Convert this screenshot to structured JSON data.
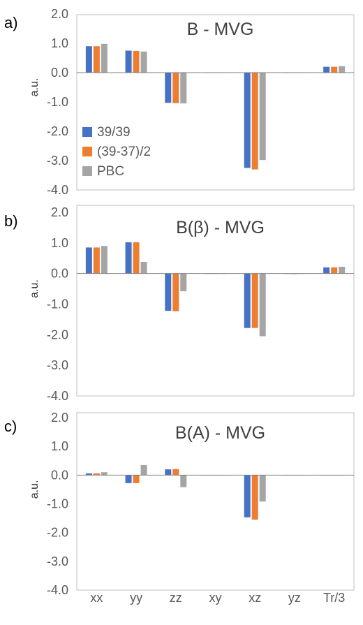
{
  "colors": {
    "s1": "#4472C4",
    "s2": "#ED7D31",
    "s3": "#A5A5A5",
    "axis": "#7f7f7f",
    "text": "#333333"
  },
  "chart_data": [
    {
      "type": "bar",
      "panel_label": "a)",
      "title": "B - MVG",
      "ylabel": "a.u.",
      "ylim": [
        -4,
        2
      ],
      "yticks": [
        "2.0",
        "1.0",
        "0.0",
        "-1.0",
        "-2.0",
        "-3.0",
        "-4.0"
      ],
      "categories": [
        "xx",
        "yy",
        "zz",
        "xy",
        "xz",
        "yz",
        "Tr/3"
      ],
      "show_categories": false,
      "legend": "left",
      "series": [
        {
          "name": "39/39",
          "values": [
            0.9,
            0.75,
            -1.03,
            0.0,
            -3.25,
            0.0,
            0.2
          ]
        },
        {
          "name": "(39-37)/2",
          "values": [
            0.9,
            0.74,
            -1.04,
            0.0,
            -3.3,
            0.0,
            0.2
          ]
        },
        {
          "name": "PBC",
          "values": [
            0.98,
            0.72,
            -1.05,
            0.0,
            -2.98,
            0.0,
            0.22
          ]
        }
      ]
    },
    {
      "type": "bar",
      "panel_label": "b)",
      "title": "B(β) - MVG",
      "ylabel": "a.u.",
      "ylim": [
        -4,
        2
      ],
      "yticks": [
        "2.0",
        "1.0",
        "0.0",
        "-1.0",
        "-2.0",
        "-3.0",
        "-4.0"
      ],
      "categories": [
        "xx",
        "yy",
        "zz",
        "xy",
        "xz",
        "yz",
        "Tr/3"
      ],
      "show_categories": false,
      "legend": "none",
      "series": [
        {
          "name": "39/39",
          "values": [
            0.85,
            1.02,
            -1.22,
            0.0,
            -1.78,
            0.0,
            0.2
          ]
        },
        {
          "name": "(39-37)/2",
          "values": [
            0.85,
            1.02,
            -1.23,
            0.0,
            -1.78,
            -0.02,
            0.2
          ]
        },
        {
          "name": "PBC",
          "values": [
            0.9,
            0.38,
            -0.58,
            0.0,
            -2.05,
            0.0,
            0.22
          ]
        }
      ]
    },
    {
      "type": "bar",
      "panel_label": "c)",
      "title": "B(A) - MVG",
      "ylabel": "a.u.",
      "ylim": [
        -4,
        2
      ],
      "yticks": [
        "2.0",
        "1.0",
        "0.0",
        "-1.0",
        "-2.0",
        "-3.0",
        "-4.0"
      ],
      "categories": [
        "xx",
        "yy",
        "zz",
        "xy",
        "xz",
        "yz",
        "Tr/3"
      ],
      "show_categories": true,
      "legend": "none",
      "series": [
        {
          "name": "39/39",
          "values": [
            0.06,
            -0.28,
            0.2,
            0.0,
            -1.47,
            0.0,
            0.0
          ]
        },
        {
          "name": "(39-37)/2",
          "values": [
            0.06,
            -0.28,
            0.21,
            0.0,
            -1.55,
            0.0,
            0.0
          ]
        },
        {
          "name": "PBC",
          "values": [
            0.1,
            0.35,
            -0.42,
            0.0,
            -0.92,
            0.0,
            0.0
          ]
        }
      ]
    }
  ]
}
